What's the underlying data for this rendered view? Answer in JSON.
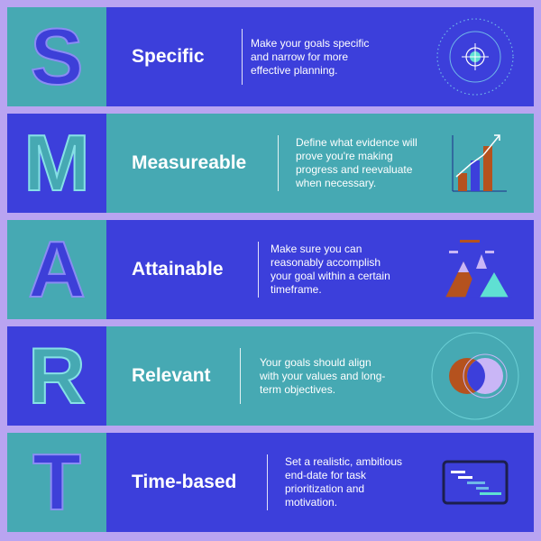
{
  "rows": [
    {
      "letter": "S",
      "title": "Specific",
      "description": "Make your goals specific and narrow for more effective planning.",
      "icon": "target-icon"
    },
    {
      "letter": "M",
      "title": "Measureable",
      "description": "Define what evidence will prove you're making progress and reevaluate when necessary.",
      "icon": "bar-chart-icon"
    },
    {
      "letter": "A",
      "title": "Attainable",
      "description": "Make sure you can reasonably accomplish your goal within a certain timeframe.",
      "icon": "mountains-icon"
    },
    {
      "letter": "R",
      "title": "Relevant",
      "description": "Your goals should align with your values and long-term objectives.",
      "icon": "venn-diagram-icon"
    },
    {
      "letter": "T",
      "title": "Time-based",
      "description": "Set a realistic, ambitious end-date for task prioritization and motivation.",
      "icon": "gantt-chart-icon"
    }
  ],
  "colors": {
    "background": "#b9a4f1",
    "blue": "#3c3fdb",
    "teal": "#46a9b3",
    "orange": "#b5521e",
    "lavender": "#c9b6f6",
    "mint": "#5fe0d3"
  }
}
